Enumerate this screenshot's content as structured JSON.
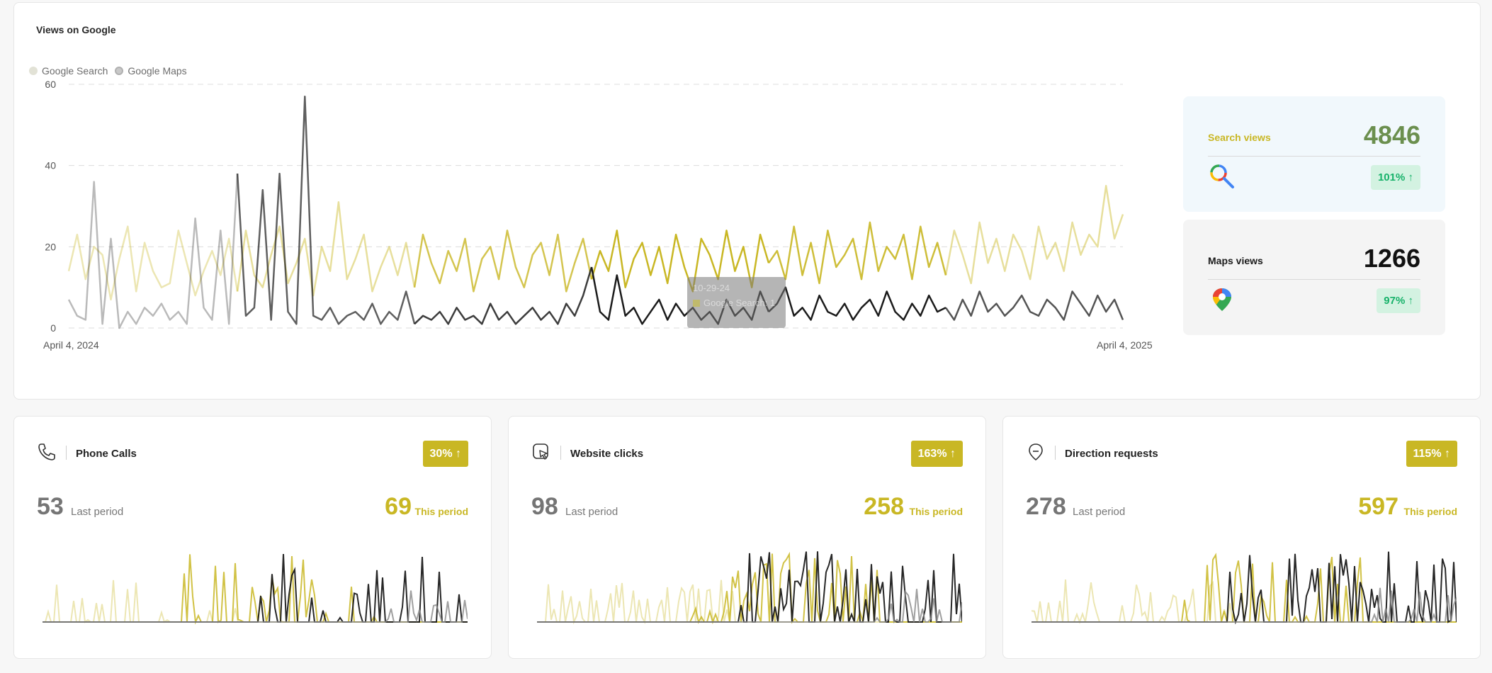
{
  "main": {
    "title": "Views on Google",
    "legend": [
      {
        "label": "Google Search",
        "color": "#e2e2d6"
      },
      {
        "label": "Google Maps",
        "color": "#c8c8c8"
      }
    ],
    "x_start_label": "April 4, 2024",
    "x_end_label": "April 4, 2025",
    "tooltip": {
      "date": "10-29-24",
      "series": "Google Search: 1"
    }
  },
  "chart_data": {
    "type": "line",
    "title": "Views on Google",
    "xlabel": "",
    "ylabel": "",
    "ylim": [
      0,
      60
    ],
    "yticks": [
      0,
      20,
      40,
      60
    ],
    "x_range": [
      "April 4, 2024",
      "April 4, 2025"
    ],
    "grid": true,
    "legend_position": "top-left",
    "series": [
      {
        "name": "Google Search",
        "color": "#c9b724",
        "values": [
          14,
          23,
          12,
          20,
          18,
          7,
          17,
          25,
          9,
          21,
          14,
          10,
          11,
          24,
          16,
          8,
          14,
          19,
          13,
          22,
          9,
          24,
          13,
          10,
          18,
          25,
          11,
          16,
          22,
          8,
          20,
          14,
          31,
          12,
          17,
          23,
          9,
          15,
          20,
          13,
          21,
          10,
          23,
          16,
          11,
          19,
          14,
          22,
          9,
          17,
          20,
          12,
          24,
          15,
          10,
          18,
          21,
          13,
          23,
          9,
          16,
          22,
          12,
          19,
          14,
          24,
          10,
          17,
          21,
          13,
          20,
          11,
          23,
          15,
          9,
          22,
          18,
          12,
          24,
          14,
          20,
          10,
          23,
          16,
          19,
          12,
          25,
          13,
          21,
          11,
          24,
          15,
          18,
          22,
          12,
          26,
          14,
          20,
          17,
          23,
          12,
          25,
          15,
          21,
          13,
          24,
          18,
          11,
          26,
          16,
          22,
          14,
          23,
          19,
          12,
          25,
          17,
          21,
          14,
          26,
          18,
          23,
          20,
          35,
          22,
          28
        ]
      },
      {
        "name": "Google Maps",
        "color": "#1b1b1b",
        "values": [
          7,
          3,
          2,
          36,
          1,
          22,
          0,
          4,
          1,
          5,
          3,
          6,
          2,
          4,
          1,
          27,
          5,
          2,
          24,
          1,
          38,
          3,
          5,
          34,
          2,
          38,
          4,
          1,
          57,
          3,
          2,
          5,
          1,
          3,
          4,
          2,
          6,
          1,
          4,
          2,
          9,
          1,
          3,
          2,
          4,
          1,
          5,
          2,
          3,
          1,
          6,
          2,
          4,
          1,
          3,
          5,
          2,
          4,
          1,
          6,
          3,
          8,
          15,
          4,
          2,
          13,
          3,
          5,
          1,
          4,
          7,
          2,
          6,
          3,
          5,
          2,
          4,
          1,
          7,
          3,
          5,
          2,
          9,
          4,
          6,
          10,
          3,
          5,
          2,
          8,
          4,
          3,
          6,
          2,
          5,
          7,
          3,
          9,
          4,
          2,
          6,
          3,
          8,
          4,
          5,
          2,
          7,
          3,
          9,
          4,
          6,
          3,
          5,
          8,
          4,
          3,
          7,
          5,
          2,
          9,
          6,
          3,
          8,
          4,
          7,
          2
        ]
      }
    ]
  },
  "search_panel": {
    "label": "Search views",
    "value": "4846",
    "change": "101% ↑",
    "label_color": "#c9b724",
    "value_color": "#6b8f4e"
  },
  "maps_panel": {
    "label": "Maps views",
    "value": "1266",
    "change": "97% ↑"
  },
  "mini_cards": [
    {
      "title": "Phone Calls",
      "icon": "phone-icon",
      "change": "30% ↑",
      "last_value": "53",
      "last_label": "Last period",
      "this_value": "69",
      "this_label": "This period"
    },
    {
      "title": "Website clicks",
      "icon": "cursor-click-icon",
      "change": "163% ↑",
      "last_value": "98",
      "last_label": "Last period",
      "this_value": "258",
      "this_label": "This period"
    },
    {
      "title": "Direction requests",
      "icon": "direction-pin-icon",
      "change": "115% ↑",
      "last_value": "278",
      "last_label": "Last period",
      "this_value": "597",
      "this_label": "This period"
    }
  ]
}
